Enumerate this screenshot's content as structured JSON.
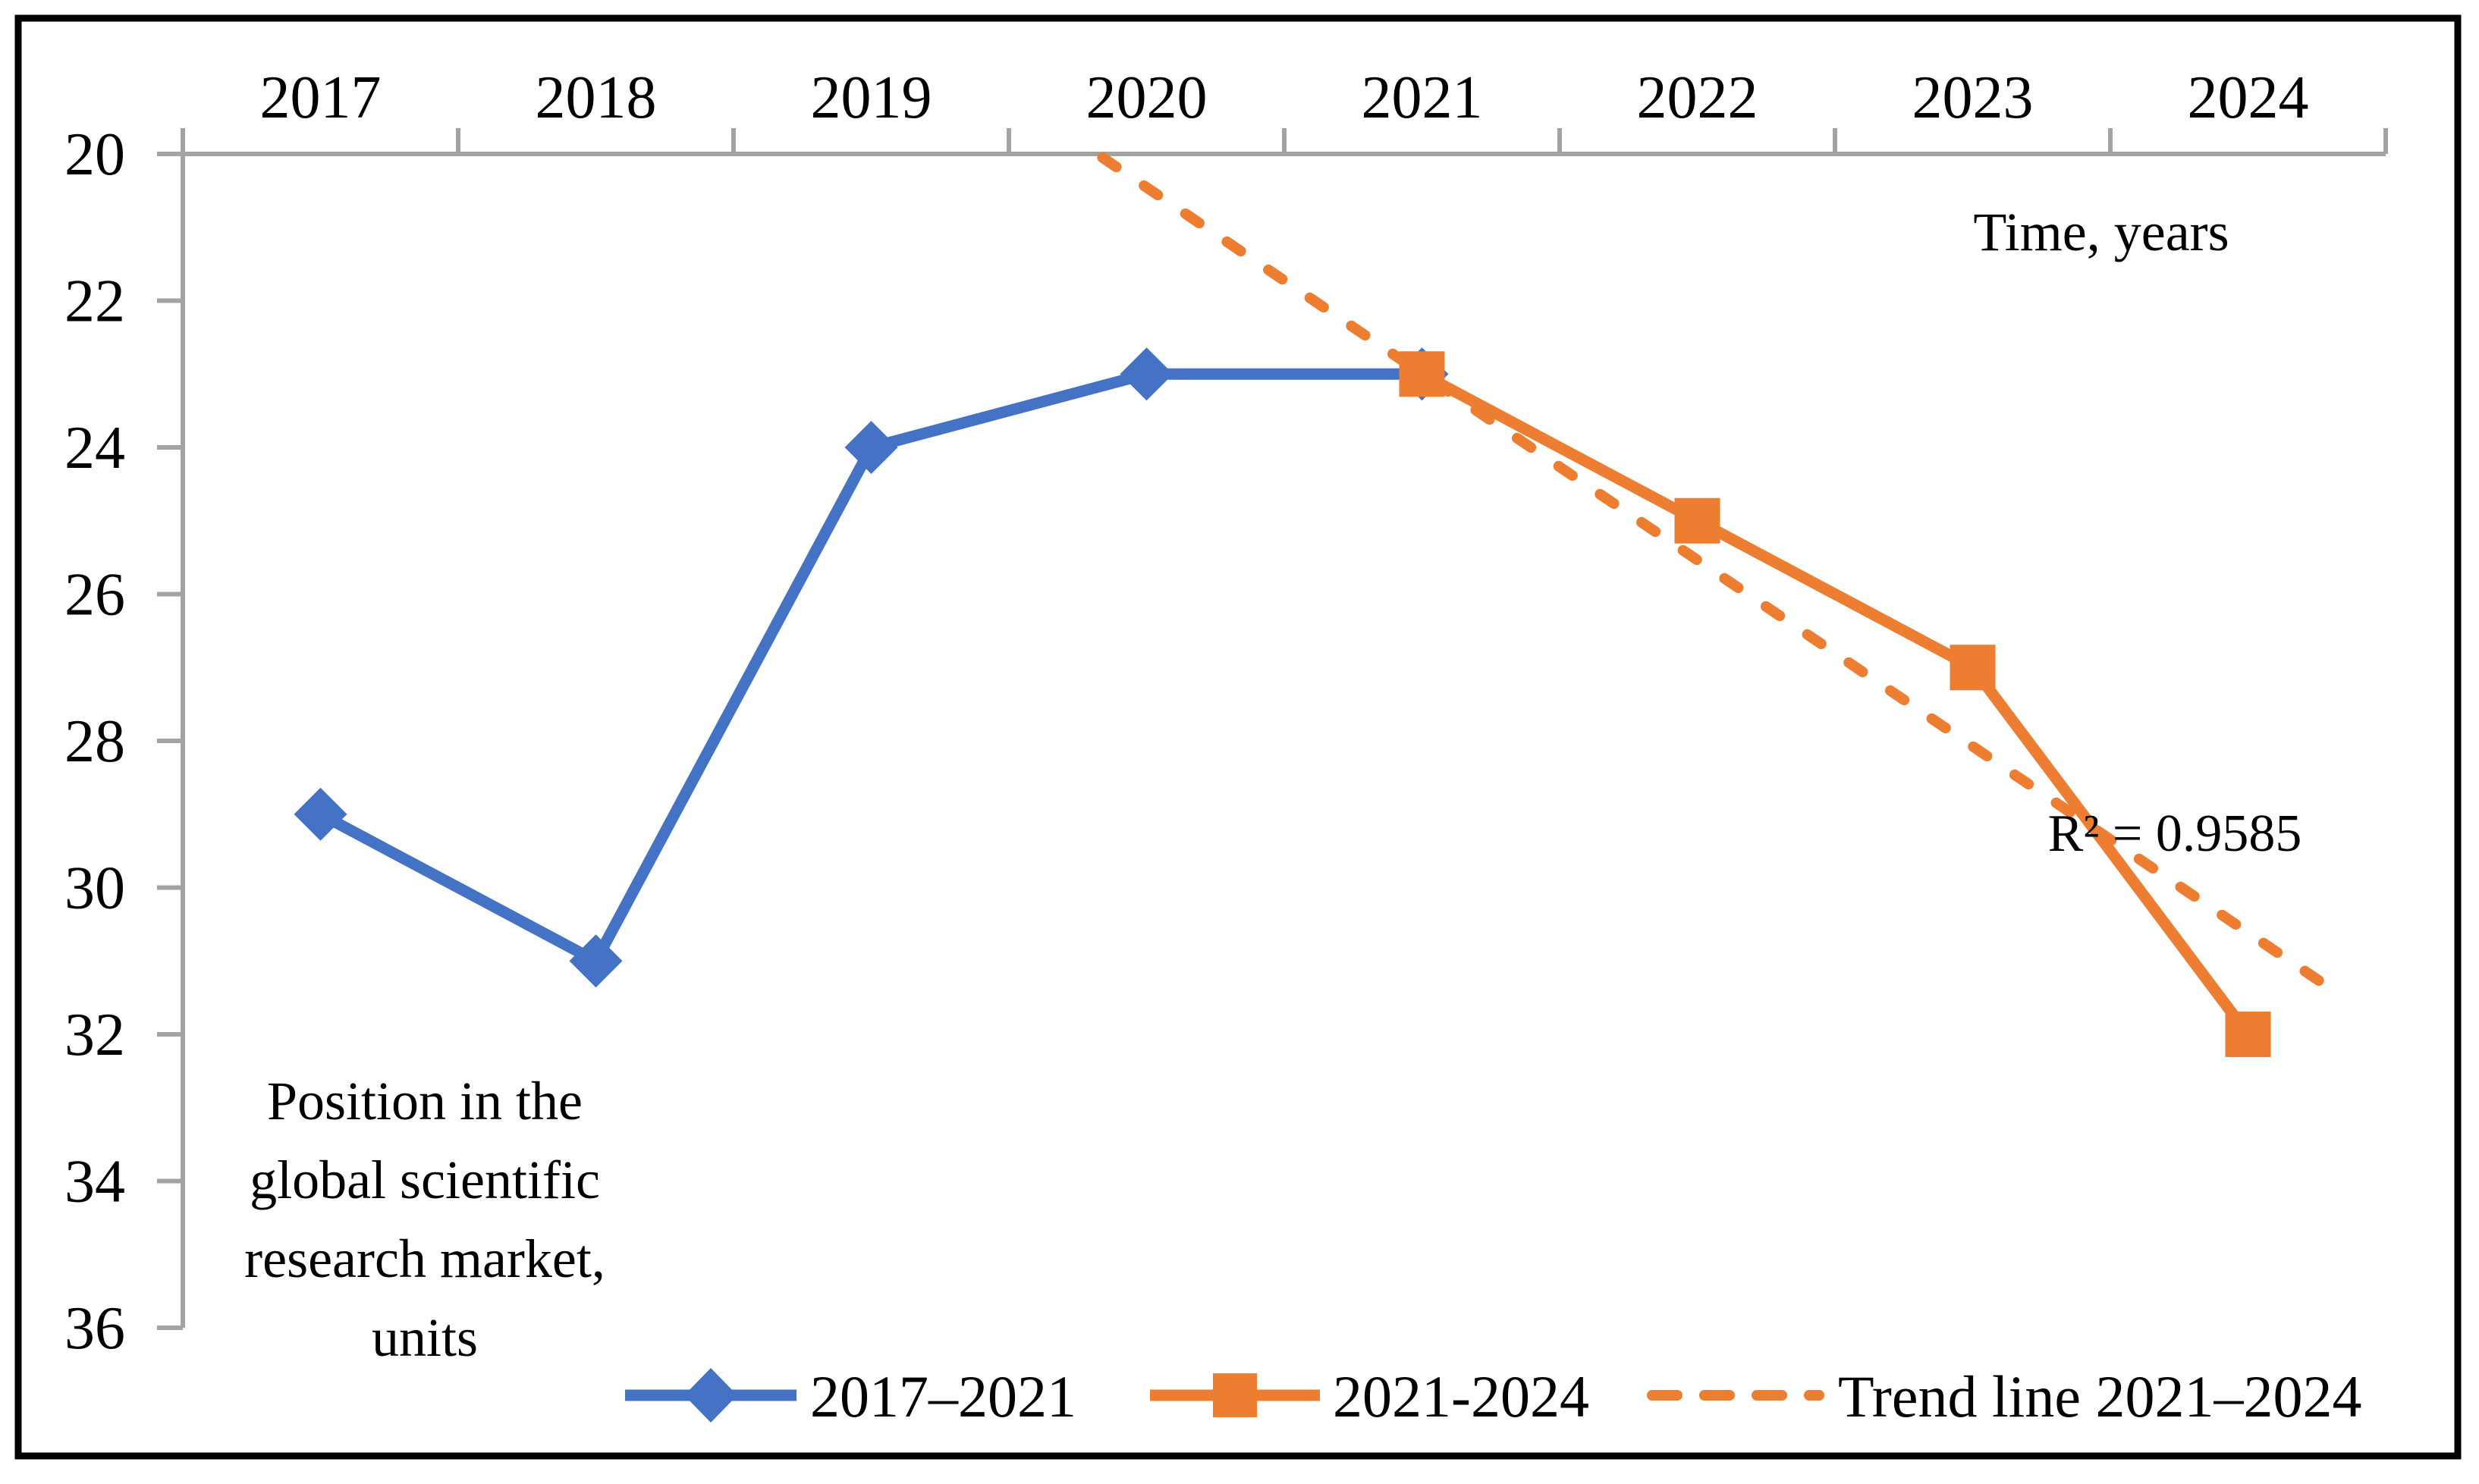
{
  "chart_data": {
    "type": "line",
    "title": "",
    "x_axis_label": "Time, years",
    "y_axis_label": "Position in the global scientific research market, units",
    "y_axis_label_lines": [
      "Position in the",
      "global scientific",
      "research market,",
      "units"
    ],
    "x_labels": [
      "2017",
      "2018",
      "2019",
      "2020",
      "2021",
      "2022",
      "2023",
      "2024"
    ],
    "y_ticks": [
      20,
      22,
      24,
      26,
      28,
      30,
      32,
      34,
      36
    ],
    "y_axis": {
      "min": 20,
      "max": 36,
      "step": 2,
      "reversed": true
    },
    "grid": false,
    "legend_position": "bottom",
    "axis_color": "#A3A3A3",
    "frame_color": "#000000",
    "background_color": "#FFFFFF",
    "series": [
      {
        "name": "2017–2021",
        "color": "#4472C4",
        "marker": "diamond",
        "x": [
          2017,
          2018,
          2019,
          2020,
          2021
        ],
        "values": [
          29,
          31,
          24,
          23,
          23
        ]
      },
      {
        "name": "2021-2024",
        "color": "#ED7D31",
        "marker": "square",
        "x": [
          2021,
          2022,
          2023,
          2024
        ],
        "values": [
          23,
          25,
          27,
          32
        ]
      }
    ],
    "trend_line": {
      "name": "Trend line 2021–2024",
      "color": "#ED7D31",
      "style": "dashed",
      "start": {
        "x": 2019.84,
        "y": 20.05
      },
      "end": {
        "x": 2024.27,
        "y": 31.3
      },
      "r_squared_label": "R² = 0.9585",
      "r_squared": 0.9585
    }
  }
}
